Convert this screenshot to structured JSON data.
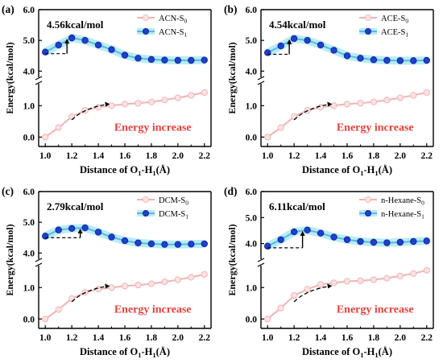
{
  "chart_data": [
    {
      "type": "line",
      "panel_label": "(a)",
      "xlabel_parts": [
        "Distance of O",
        "1",
        "-H",
        "1",
        "(Å)"
      ],
      "ylabel": "Energy(kcal/mol)",
      "x_ticks": [
        "1.0",
        "1.2",
        "1.4",
        "1.6",
        "1.8",
        "2.0",
        "2.2"
      ],
      "y_ticks_top": [
        "4.0",
        "5.0",
        "6.0"
      ],
      "y_ticks_bottom": [
        "0.0",
        "1.0"
      ],
      "ylim_top": [
        3.8,
        6.0
      ],
      "ylim_bottom": [
        -0.3,
        1.7
      ],
      "barrier_label": "4.56kcal/mol",
      "annotation": "Energy increase",
      "series": [
        {
          "name": "ACN-S",
          "name_sub": "0",
          "color": "#f2b3b3",
          "marker_fill": "#fbe3e3",
          "x": [
            1.0,
            1.1,
            1.2,
            1.3,
            1.4,
            1.5,
            1.6,
            1.7,
            1.8,
            1.9,
            2.0,
            2.1,
            2.2
          ],
          "y": [
            0.0,
            0.3,
            0.65,
            0.85,
            0.95,
            1.0,
            1.05,
            1.08,
            1.12,
            1.18,
            1.25,
            1.33,
            1.42
          ]
        },
        {
          "name": "ACN-S",
          "name_sub": "1",
          "color": "#5ab8dd",
          "marker_fill": "#1f3fd1",
          "x": [
            1.0,
            1.1,
            1.2,
            1.3,
            1.4,
            1.5,
            1.6,
            1.7,
            1.8,
            1.9,
            2.0,
            2.1,
            2.2
          ],
          "y": [
            4.62,
            4.85,
            5.08,
            5.0,
            4.85,
            4.7,
            4.52,
            4.42,
            4.38,
            4.36,
            4.35,
            4.35,
            4.36
          ]
        }
      ]
    },
    {
      "type": "line",
      "panel_label": "(b)",
      "xlabel_parts": [
        "Distance of O",
        "1",
        "-H",
        "1",
        "(Å)"
      ],
      "ylabel": "Energy(kcal/mol)",
      "x_ticks": [
        "1.0",
        "1.2",
        "1.4",
        "1.6",
        "1.8",
        "2.0",
        "2.2"
      ],
      "y_ticks_top": [
        "4.0",
        "5.0",
        "6.0"
      ],
      "y_ticks_bottom": [
        "0.0",
        "1.0"
      ],
      "ylim_top": [
        3.8,
        6.0
      ],
      "ylim_bottom": [
        -0.3,
        1.7
      ],
      "barrier_label": "4.54kcal/mol",
      "annotation": "Energy increase",
      "series": [
        {
          "name": "ACE-S",
          "name_sub": "0",
          "color": "#f2b3b3",
          "marker_fill": "#fbe3e3",
          "x": [
            1.0,
            1.1,
            1.2,
            1.3,
            1.4,
            1.5,
            1.6,
            1.7,
            1.8,
            1.9,
            2.0,
            2.1,
            2.2
          ],
          "y": [
            0.0,
            0.3,
            0.65,
            0.85,
            0.95,
            1.0,
            1.05,
            1.08,
            1.12,
            1.18,
            1.25,
            1.33,
            1.42
          ]
        },
        {
          "name": "ACE-S",
          "name_sub": "1",
          "color": "#5ab8dd",
          "marker_fill": "#1f3fd1",
          "x": [
            1.0,
            1.1,
            1.2,
            1.3,
            1.4,
            1.5,
            1.6,
            1.7,
            1.8,
            1.9,
            2.0,
            2.1,
            2.2
          ],
          "y": [
            4.6,
            4.82,
            5.06,
            5.0,
            4.85,
            4.68,
            4.5,
            4.42,
            4.37,
            4.35,
            4.34,
            4.34,
            4.35
          ]
        }
      ]
    },
    {
      "type": "line",
      "panel_label": "(c)",
      "xlabel_parts": [
        "Distance of O",
        "1",
        "-H",
        "1",
        "(Å)"
      ],
      "ylabel": "Energy(kcal/mol)",
      "x_ticks": [
        "1.0",
        "1.2",
        "1.4",
        "1.6",
        "1.8",
        "2.0",
        "2.2"
      ],
      "y_ticks_top": [
        "4.0",
        "5.0",
        "6.0"
      ],
      "y_ticks_bottom": [
        "0.0",
        "1.0"
      ],
      "ylim_top": [
        3.8,
        6.0
      ],
      "ylim_bottom": [
        -0.3,
        1.7
      ],
      "barrier_label": "2.79kcal/mol",
      "annotation": "Energy increase",
      "series": [
        {
          "name": "DCM-S",
          "name_sub": "0",
          "color": "#f2b3b3",
          "marker_fill": "#fbe3e3",
          "x": [
            1.0,
            1.1,
            1.2,
            1.3,
            1.4,
            1.5,
            1.6,
            1.7,
            1.8,
            1.9,
            2.0,
            2.1,
            2.2
          ],
          "y": [
            0.0,
            0.3,
            0.65,
            0.85,
            0.95,
            1.0,
            1.05,
            1.08,
            1.12,
            1.18,
            1.25,
            1.33,
            1.42
          ]
        },
        {
          "name": "DCM-S",
          "name_sub": "1",
          "color": "#5ab8dd",
          "marker_fill": "#1f3fd1",
          "x": [
            1.0,
            1.1,
            1.2,
            1.3,
            1.4,
            1.5,
            1.6,
            1.7,
            1.8,
            1.9,
            2.0,
            2.1,
            2.2
          ],
          "y": [
            4.55,
            4.75,
            4.8,
            4.82,
            4.68,
            4.52,
            4.4,
            4.33,
            4.3,
            4.28,
            4.28,
            4.29,
            4.3
          ]
        }
      ]
    },
    {
      "type": "line",
      "panel_label": "(d)",
      "xlabel_parts": [
        "Distance of O",
        "1",
        "-H",
        "1",
        "(Å)"
      ],
      "ylabel": "Energy(kcal/mol)",
      "x_ticks": [
        "1.0",
        "1.2",
        "1.4",
        "1.6",
        "1.8",
        "2.0",
        "2.2"
      ],
      "y_ticks_top": [
        "4.0",
        "5.0",
        "6.0"
      ],
      "y_ticks_bottom": [
        "0.0",
        "1.0"
      ],
      "ylim_top": [
        3.4,
        6.0
      ],
      "ylim_bottom": [
        -0.3,
        1.7
      ],
      "barrier_label": "6.11kcal/mol",
      "annotation": "Energy increase",
      "series": [
        {
          "name": "n-Hexane-S",
          "name_sub": "0",
          "color": "#f2b3b3",
          "marker_fill": "#fbe3e3",
          "x": [
            1.0,
            1.1,
            1.2,
            1.3,
            1.4,
            1.5,
            1.6,
            1.7,
            1.8,
            1.9,
            2.0,
            2.1,
            2.2
          ],
          "y": [
            0.0,
            0.35,
            0.75,
            0.95,
            1.1,
            1.15,
            1.2,
            1.22,
            1.25,
            1.3,
            1.37,
            1.45,
            1.55
          ]
        },
        {
          "name": "n-Hexane-S",
          "name_sub": "1",
          "color": "#5ab8dd",
          "marker_fill": "#1f3fd1",
          "x": [
            1.0,
            1.1,
            1.2,
            1.3,
            1.4,
            1.5,
            1.6,
            1.7,
            1.8,
            1.9,
            2.0,
            2.1,
            2.2
          ],
          "y": [
            3.9,
            4.15,
            4.45,
            4.52,
            4.4,
            4.25,
            4.15,
            4.08,
            4.05,
            4.03,
            4.05,
            4.08,
            4.1
          ]
        }
      ]
    }
  ]
}
